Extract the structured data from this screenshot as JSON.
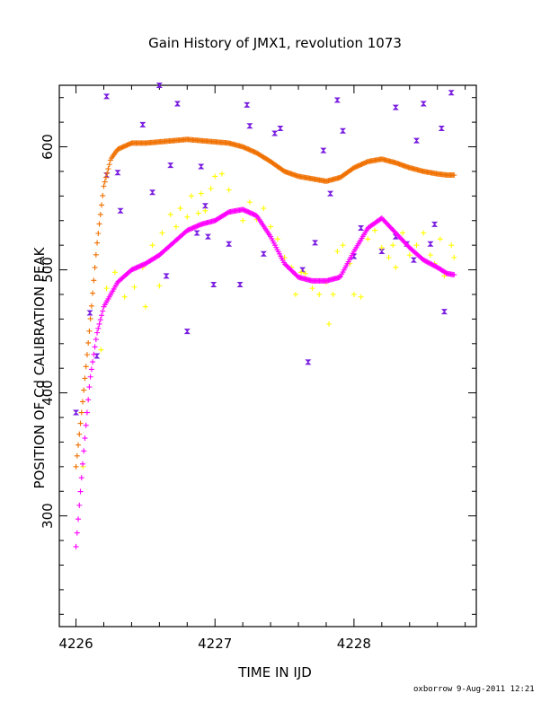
{
  "chart_data": {
    "type": "scatter",
    "title": "Gain History of JMX1, revolution 1073",
    "xlabel": "TIME IN IJD",
    "ylabel": "POSITION OF Cd CALIBRATION PEAK",
    "xlim": [
      4225.88,
      4228.88
    ],
    "ylim": [
      210,
      650
    ],
    "xticks": [
      4226,
      4227,
      4228
    ],
    "xtick_labels": [
      "4226",
      "4227",
      "4228"
    ],
    "yticks": [
      300,
      400,
      500,
      600
    ],
    "ytick_labels": [
      "300",
      "400",
      "500",
      "600"
    ],
    "grid": false,
    "legend": "none",
    "series": [
      {
        "marker": "bowtie",
        "color": "#7a1fe0",
        "points": [
          [
            4226.0,
            384
          ],
          [
            4226.1,
            465
          ],
          [
            4226.15,
            430
          ],
          [
            4226.22,
            577
          ],
          [
            4226.22,
            641
          ],
          [
            4226.3,
            579
          ],
          [
            4226.32,
            548
          ],
          [
            4226.48,
            618
          ],
          [
            4226.55,
            563
          ],
          [
            4226.6,
            650
          ],
          [
            4226.65,
            495
          ],
          [
            4226.68,
            585
          ],
          [
            4226.73,
            635
          ],
          [
            4226.8,
            450
          ],
          [
            4226.87,
            530
          ],
          [
            4226.9,
            584
          ],
          [
            4226.93,
            552
          ],
          [
            4226.95,
            527
          ],
          [
            4226.99,
            488
          ],
          [
            4227.1,
            521
          ],
          [
            4227.18,
            488
          ],
          [
            4227.23,
            634
          ],
          [
            4227.25,
            617
          ],
          [
            4227.35,
            513
          ],
          [
            4227.43,
            611
          ],
          [
            4227.47,
            615
          ],
          [
            4227.63,
            500
          ],
          [
            4227.67,
            425
          ],
          [
            4227.72,
            522
          ],
          [
            4227.78,
            597
          ],
          [
            4227.83,
            562
          ],
          [
            4227.88,
            638
          ],
          [
            4227.92,
            613
          ],
          [
            4228.0,
            511
          ],
          [
            4228.05,
            534
          ],
          [
            4228.2,
            515
          ],
          [
            4228.3,
            632
          ],
          [
            4228.3,
            527
          ],
          [
            4228.38,
            521
          ],
          [
            4228.43,
            508
          ],
          [
            4228.45,
            605
          ],
          [
            4228.5,
            635
          ],
          [
            4228.55,
            521
          ],
          [
            4228.58,
            537
          ],
          [
            4228.63,
            615
          ],
          [
            4228.65,
            466
          ],
          [
            4228.7,
            644
          ]
        ]
      },
      {
        "marker": "plus",
        "color": "#ffff00",
        "points": [
          [
            4226.05,
            340
          ],
          [
            4226.18,
            435
          ],
          [
            4226.22,
            485
          ],
          [
            4226.28,
            498
          ],
          [
            4226.35,
            478
          ],
          [
            4226.42,
            486
          ],
          [
            4226.48,
            502
          ],
          [
            4226.5,
            470
          ],
          [
            4226.55,
            520
          ],
          [
            4226.6,
            487
          ],
          [
            4226.62,
            530
          ],
          [
            4226.68,
            545
          ],
          [
            4226.72,
            535
          ],
          [
            4226.75,
            550
          ],
          [
            4226.8,
            543
          ],
          [
            4226.83,
            560
          ],
          [
            4226.88,
            546
          ],
          [
            4226.9,
            562
          ],
          [
            4226.93,
            548
          ],
          [
            4226.97,
            566
          ],
          [
            4227.0,
            576
          ],
          [
            4227.05,
            578
          ],
          [
            4227.1,
            565
          ],
          [
            4227.15,
            548
          ],
          [
            4227.2,
            540
          ],
          [
            4227.25,
            555
          ],
          [
            4227.3,
            541
          ],
          [
            4227.35,
            550
          ],
          [
            4227.4,
            535
          ],
          [
            4227.45,
            525
          ],
          [
            4227.5,
            510
          ],
          [
            4227.55,
            502
          ],
          [
            4227.58,
            480
          ],
          [
            4227.62,
            498
          ],
          [
            4227.65,
            497
          ],
          [
            4227.7,
            485
          ],
          [
            4227.75,
            480
          ],
          [
            4227.8,
            490
          ],
          [
            4227.82,
            456
          ],
          [
            4227.85,
            480
          ],
          [
            4227.88,
            515
          ],
          [
            4227.92,
            520
          ],
          [
            4227.97,
            505
          ],
          [
            4228.0,
            480
          ],
          [
            4228.05,
            478
          ],
          [
            4228.1,
            525
          ],
          [
            4228.15,
            532
          ],
          [
            4228.2,
            518
          ],
          [
            4228.25,
            510
          ],
          [
            4228.28,
            520
          ],
          [
            4228.3,
            502
          ],
          [
            4228.35,
            530
          ],
          [
            4228.4,
            512
          ],
          [
            4228.45,
            520
          ],
          [
            4228.5,
            530
          ],
          [
            4228.55,
            512
          ],
          [
            4228.58,
            505
          ],
          [
            4228.62,
            525
          ],
          [
            4228.65,
            495
          ],
          [
            4228.7,
            520
          ],
          [
            4228.72,
            510
          ]
        ]
      },
      {
        "marker": "plus",
        "color": "#f07000",
        "curve": [
          [
            4226.0,
            340
          ],
          [
            4226.05,
            395
          ],
          [
            4226.1,
            455
          ],
          [
            4226.15,
            520
          ],
          [
            4226.2,
            568
          ],
          [
            4226.25,
            590
          ],
          [
            4226.3,
            598
          ],
          [
            4226.4,
            603
          ],
          [
            4226.5,
            603
          ],
          [
            4226.6,
            604
          ],
          [
            4226.7,
            605
          ],
          [
            4226.8,
            606
          ],
          [
            4226.9,
            605
          ],
          [
            4227.0,
            604
          ],
          [
            4227.1,
            603
          ],
          [
            4227.2,
            600
          ],
          [
            4227.3,
            595
          ],
          [
            4227.4,
            588
          ],
          [
            4227.5,
            580
          ],
          [
            4227.6,
            576
          ],
          [
            4227.7,
            574
          ],
          [
            4227.8,
            572
          ],
          [
            4227.9,
            575
          ],
          [
            4228.0,
            583
          ],
          [
            4228.1,
            588
          ],
          [
            4228.2,
            590
          ],
          [
            4228.3,
            587
          ],
          [
            4228.4,
            583
          ],
          [
            4228.5,
            580
          ],
          [
            4228.6,
            578
          ],
          [
            4228.67,
            577
          ],
          [
            4228.72,
            577
          ]
        ]
      },
      {
        "marker": "plus",
        "color": "#ff00ff",
        "curve": [
          [
            4226.0,
            275
          ],
          [
            4226.05,
            345
          ],
          [
            4226.1,
            410
          ],
          [
            4226.15,
            448
          ],
          [
            4226.2,
            470
          ],
          [
            4226.3,
            490
          ],
          [
            4226.4,
            500
          ],
          [
            4226.5,
            505
          ],
          [
            4226.6,
            512
          ],
          [
            4226.7,
            522
          ],
          [
            4226.8,
            532
          ],
          [
            4226.9,
            537
          ],
          [
            4227.0,
            540
          ],
          [
            4227.1,
            547
          ],
          [
            4227.2,
            549
          ],
          [
            4227.3,
            544
          ],
          [
            4227.4,
            527
          ],
          [
            4227.5,
            505
          ],
          [
            4227.6,
            494
          ],
          [
            4227.7,
            491
          ],
          [
            4227.8,
            491
          ],
          [
            4227.9,
            494
          ],
          [
            4228.0,
            515
          ],
          [
            4228.1,
            534
          ],
          [
            4228.2,
            542
          ],
          [
            4228.3,
            530
          ],
          [
            4228.4,
            518
          ],
          [
            4228.5,
            508
          ],
          [
            4228.6,
            502
          ],
          [
            4228.67,
            497
          ],
          [
            4228.72,
            496
          ]
        ]
      }
    ]
  },
  "footer": {
    "author": "oxborrow",
    "date": "9-Aug-2011 12:21"
  }
}
